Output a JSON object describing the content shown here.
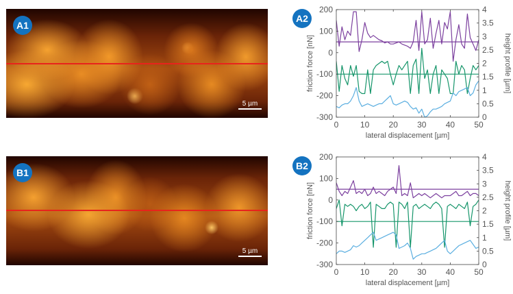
{
  "panels": {
    "A1": {
      "label": "A1",
      "scale_label": "5 µm"
    },
    "B1": {
      "label": "B1",
      "scale_label": "5 µm"
    }
  },
  "colors": {
    "badge": "#1473c0",
    "scan_line": "#e8231c",
    "purple": "#7b3f9e",
    "green": "#15956a",
    "blue": "#5aaee0"
  },
  "chart_data": [
    {
      "id": "A2",
      "label": "A2",
      "type": "line",
      "xlabel": "lateral displacement [µm]",
      "ylabel": "friction force [nN]",
      "y2label": "height profile [µm]",
      "xlim": [
        0,
        50
      ],
      "ylim": [
        -300,
        200
      ],
      "y2lim": [
        0,
        4
      ],
      "xticks": [
        "0",
        "10",
        "20",
        "30",
        "40",
        "50"
      ],
      "yticks": [
        "200",
        "100",
        "0",
        "-100",
        "-200",
        "-300"
      ],
      "y2ticks": [
        "4",
        "3.5",
        "3",
        "2.5",
        "2",
        "1.5",
        "1",
        "0.5",
        "0"
      ],
      "grid": false,
      "x": [
        0,
        1,
        2,
        3,
        4,
        5,
        6,
        7,
        8,
        9,
        10,
        11,
        12,
        13,
        14,
        15,
        16,
        17,
        18,
        19,
        20,
        21,
        22,
        23,
        24,
        25,
        26,
        27,
        28,
        29,
        30,
        31,
        32,
        33,
        34,
        35,
        36,
        37,
        38,
        39,
        40,
        41,
        42,
        43,
        44,
        45,
        46,
        47,
        48,
        49,
        50
      ],
      "series": [
        {
          "axis": "left",
          "color": "#7b3f9e",
          "values": [
            150,
            30,
            120,
            60,
            100,
            80,
            190,
            190,
            5,
            60,
            140,
            90,
            70,
            80,
            70,
            60,
            55,
            45,
            50,
            40,
            40,
            45,
            50,
            40,
            35,
            30,
            20,
            50,
            150,
            10,
            190,
            40,
            60,
            160,
            20,
            90,
            150,
            40,
            140,
            110,
            190,
            -40,
            60,
            130,
            40,
            20,
            180,
            70,
            40,
            10,
            60
          ]
        },
        {
          "axis": "left",
          "color": "#15956a",
          "values": [
            -40,
            -180,
            -60,
            -120,
            -150,
            -60,
            -110,
            -60,
            -180,
            -190,
            -190,
            -80,
            -190,
            -80,
            -60,
            -50,
            -40,
            -50,
            -40,
            -100,
            -150,
            -100,
            -60,
            -80,
            -60,
            -40,
            -190,
            -60,
            -30,
            -190,
            20,
            -120,
            -80,
            -190,
            -100,
            -60,
            -190,
            -80,
            -100,
            -120,
            -190,
            -190,
            -40,
            -100,
            -60,
            -80,
            -190,
            -120,
            -60,
            -80,
            -60
          ]
        },
        {
          "axis": "right",
          "color": "#5aaee0",
          "values": [
            0.4,
            0.35,
            0.45,
            0.5,
            0.5,
            0.6,
            0.8,
            1.1,
            0.6,
            0.4,
            0.45,
            0.5,
            0.45,
            0.4,
            0.45,
            0.5,
            0.5,
            0.6,
            0.7,
            0.8,
            0.5,
            0.45,
            0.5,
            0.55,
            0.6,
            0.55,
            0.4,
            0.3,
            0.35,
            0.15,
            0.3,
            0.0,
            0.05,
            0.2,
            0.3,
            0.3,
            0.35,
            0.4,
            0.5,
            0.55,
            0.6,
            0.9,
            0.8,
            0.95,
            1.0,
            1.05,
            1.1,
            0.8,
            0.9,
            1.2,
            1.35
          ]
        }
      ],
      "reference_lines": [
        {
          "y": 50,
          "color": "#7b3f9e"
        },
        {
          "y": -100,
          "color": "#15956a"
        }
      ]
    },
    {
      "id": "B2",
      "label": "B2",
      "type": "line",
      "xlabel": "lateral displacement [µm]",
      "ylabel": "friction force [nN]",
      "y2label": "height profile [µm]",
      "xlim": [
        0,
        50
      ],
      "ylim": [
        -300,
        200
      ],
      "y2lim": [
        0,
        4
      ],
      "xticks": [
        "0",
        "10",
        "20",
        "30",
        "40",
        "50"
      ],
      "yticks": [
        "200",
        "100",
        "0",
        "-100",
        "-200",
        "-300"
      ],
      "y2ticks": [
        "4",
        "3.5",
        "3",
        "2.5",
        "2",
        "1.5",
        "1",
        "0.5",
        "0"
      ],
      "grid": false,
      "x": [
        0,
        1,
        2,
        3,
        4,
        5,
        6,
        7,
        8,
        9,
        10,
        11,
        12,
        13,
        14,
        15,
        16,
        17,
        18,
        19,
        20,
        21,
        22,
        23,
        24,
        25,
        26,
        27,
        28,
        29,
        30,
        31,
        32,
        33,
        34,
        35,
        36,
        37,
        38,
        39,
        40,
        41,
        42,
        43,
        44,
        45,
        46,
        47,
        48,
        49,
        50
      ],
      "series": [
        {
          "axis": "left",
          "color": "#7b3f9e",
          "values": [
            80,
            40,
            20,
            40,
            30,
            60,
            90,
            30,
            40,
            30,
            50,
            20,
            30,
            60,
            30,
            40,
            30,
            20,
            40,
            50,
            60,
            30,
            160,
            20,
            30,
            20,
            80,
            10,
            20,
            30,
            20,
            30,
            20,
            10,
            20,
            30,
            20,
            10,
            20,
            20,
            20,
            30,
            40,
            20,
            20,
            30,
            40,
            20,
            30,
            30,
            20
          ]
        },
        {
          "axis": "left",
          "color": "#15956a",
          "values": [
            -40,
            0,
            -120,
            -20,
            -30,
            -20,
            -30,
            -50,
            -30,
            -20,
            -40,
            -30,
            -10,
            -220,
            -20,
            -30,
            -40,
            -40,
            -20,
            -10,
            -20,
            -220,
            -10,
            -20,
            -40,
            -10,
            -220,
            -30,
            -20,
            -40,
            -30,
            -20,
            -30,
            -40,
            -20,
            -10,
            -20,
            -40,
            -220,
            -30,
            -20,
            -30,
            -40,
            -20,
            -30,
            -40,
            -10,
            -120,
            -30,
            -20,
            0
          ]
        },
        {
          "axis": "right",
          "color": "#5aaee0",
          "values": [
            0.4,
            0.5,
            0.5,
            0.45,
            0.5,
            0.55,
            0.7,
            0.65,
            0.7,
            0.8,
            0.9,
            1.0,
            1.1,
            1.2,
            0.9,
            0.95,
            1.0,
            1.05,
            1.1,
            1.15,
            1.2,
            1.1,
            0.6,
            0.65,
            0.7,
            0.8,
            0.6,
            0.2,
            0.3,
            0.35,
            0.4,
            0.4,
            0.45,
            0.5,
            0.55,
            0.6,
            0.7,
            0.8,
            0.9,
            0.5,
            0.4,
            0.5,
            0.6,
            0.7,
            0.75,
            0.8,
            0.85,
            0.9,
            0.75,
            0.6,
            0.65
          ]
        }
      ],
      "reference_lines": [
        {
          "y": 50,
          "color": "#7b3f9e"
        },
        {
          "y": -100,
          "color": "#15956a"
        }
      ]
    }
  ]
}
